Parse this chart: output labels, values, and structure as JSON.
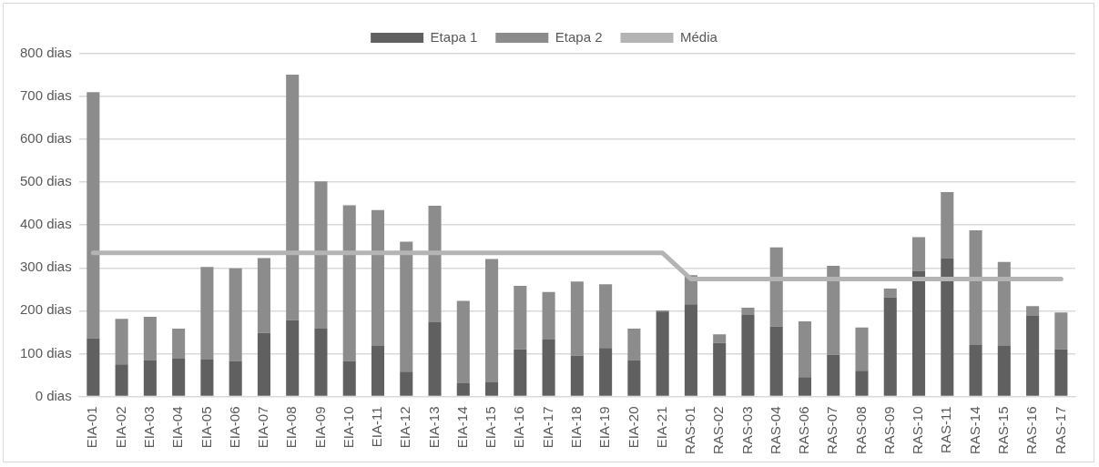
{
  "chart_data": {
    "type": "bar",
    "stacked": true,
    "legend": "top",
    "grid": "y",
    "categories": [
      "EIA-01",
      "EIA-02",
      "EIA-03",
      "EIA-04",
      "EIA-05",
      "EIA-06",
      "EIA-07",
      "EIA-08",
      "EIA-09",
      "EIA-10",
      "EIA-11",
      "EIA-12",
      "EIA-13",
      "EIA-14",
      "EIA-15",
      "EIA-16",
      "EIA-17",
      "EIA-18",
      "EIA-19",
      "EIA-20",
      "EIA-21",
      "RAS-01",
      "RAS-02",
      "RAS-03",
      "RAS-04",
      "RAS-06",
      "RAS-07",
      "RAS-08",
      "RAS-09",
      "RAS-10",
      "RAS-11",
      "RAS-14",
      "RAS-15",
      "RAS-16",
      "RAS-17"
    ],
    "ylim": [
      0,
      800
    ],
    "yticks": [
      {
        "value": 0,
        "label": "0 dias"
      },
      {
        "value": 100,
        "label": "100 dias"
      },
      {
        "value": 200,
        "label": "200 dias"
      },
      {
        "value": 300,
        "label": "300 dias"
      },
      {
        "value": 400,
        "label": "400 dias"
      },
      {
        "value": 500,
        "label": "500 dias"
      },
      {
        "value": 600,
        "label": "600 dias"
      },
      {
        "value": 700,
        "label": "700 dias"
      },
      {
        "value": 800,
        "label": "800 dias"
      }
    ],
    "series": [
      {
        "name": "Etapa 1",
        "color": "#606060",
        "values": [
          136,
          75,
          85,
          88,
          86,
          83,
          148,
          178,
          158,
          83,
          118,
          58,
          173,
          31,
          33,
          110,
          133,
          95,
          113,
          85,
          198,
          215,
          125,
          190,
          163,
          45,
          97,
          60,
          231,
          293,
          323,
          120,
          118,
          188,
          110
        ]
      },
      {
        "name": "Etapa 2",
        "color": "#8c8c8c",
        "values": [
          574,
          106,
          101,
          70,
          216,
          216,
          175,
          573,
          344,
          363,
          317,
          303,
          272,
          192,
          288,
          148,
          111,
          173,
          149,
          73,
          3,
          68,
          20,
          17,
          185,
          130,
          208,
          101,
          21,
          79,
          154,
          268,
          196,
          23,
          86
        ]
      },
      {
        "name": "Média",
        "type": "line",
        "color": "#b4b4b4",
        "values": [
          335,
          335,
          335,
          335,
          335,
          335,
          335,
          335,
          335,
          335,
          335,
          335,
          335,
          335,
          335,
          335,
          335,
          335,
          335,
          335,
          335,
          274,
          274,
          274,
          274,
          274,
          274,
          274,
          274,
          274,
          274,
          274,
          274,
          274,
          274
        ]
      }
    ]
  }
}
